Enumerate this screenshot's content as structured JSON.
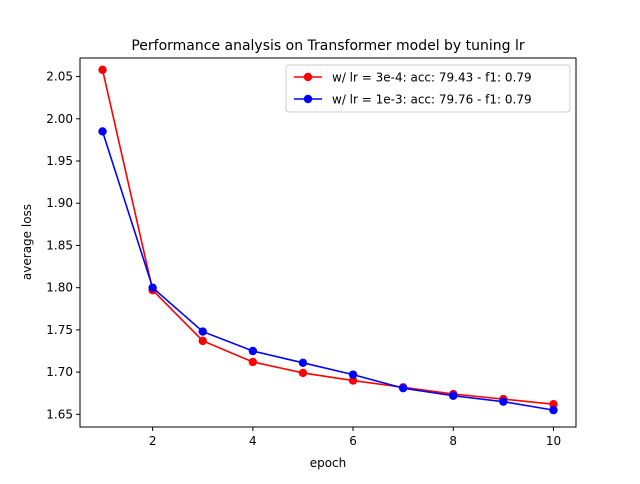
{
  "chart_data": {
    "type": "line",
    "title": "Performance analysis on Transformer model by tuning lr",
    "xlabel": "epoch",
    "ylabel": "average loss",
    "x": [
      1,
      2,
      3,
      4,
      5,
      6,
      7,
      8,
      9,
      10
    ],
    "xticks": [
      "2",
      "4",
      "6",
      "8",
      "10"
    ],
    "yticks": [
      "1.65",
      "1.70",
      "1.75",
      "1.80",
      "1.85",
      "1.90",
      "1.95",
      "2.00",
      "2.05"
    ],
    "xlim": [
      0.55,
      10.45
    ],
    "ylim": [
      1.635,
      2.072
    ],
    "grid": false,
    "legend_position": "top-right",
    "series": [
      {
        "name": "w/ lr = 3e-4: acc: 79.43 - f1: 0.79",
        "color": "#ff0000",
        "values": [
          2.058,
          1.797,
          1.737,
          1.712,
          1.699,
          1.69,
          1.682,
          1.674,
          1.668,
          1.662
        ]
      },
      {
        "name": "w/ lr = 1e-3: acc: 79.76 - f1: 0.79",
        "color": "#0000ff",
        "values": [
          1.985,
          1.8,
          1.748,
          1.725,
          1.711,
          1.697,
          1.681,
          1.672,
          1.665,
          1.655
        ]
      }
    ]
  }
}
